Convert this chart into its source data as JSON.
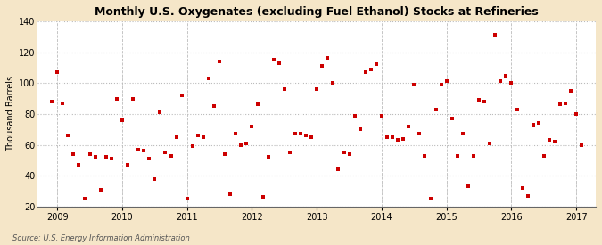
{
  "title": "Monthly U.S. Oxygenates (excluding Fuel Ethanol) Stocks at Refineries",
  "ylabel": "Thousand Barrels",
  "source": "Source: U.S. Energy Information Administration",
  "outer_bg": "#f5e6c8",
  "plot_bg": "#ffffff",
  "marker_color": "#cc0000",
  "grid_color": "#bbbbbb",
  "ylim": [
    20,
    140
  ],
  "yticks": [
    20,
    40,
    60,
    80,
    100,
    120,
    140
  ],
  "xlim": [
    2008.7,
    2017.3
  ],
  "xticks": [
    2009,
    2010,
    2011,
    2012,
    2013,
    2014,
    2015,
    2016,
    2017
  ],
  "data": [
    {
      "date": 2008.917,
      "value": 88
    },
    {
      "date": 2009.0,
      "value": 107
    },
    {
      "date": 2009.083,
      "value": 87
    },
    {
      "date": 2009.167,
      "value": 66
    },
    {
      "date": 2009.25,
      "value": 54
    },
    {
      "date": 2009.333,
      "value": 47
    },
    {
      "date": 2009.417,
      "value": 25
    },
    {
      "date": 2009.5,
      "value": 54
    },
    {
      "date": 2009.583,
      "value": 52
    },
    {
      "date": 2009.667,
      "value": 31
    },
    {
      "date": 2009.75,
      "value": 52
    },
    {
      "date": 2009.833,
      "value": 51
    },
    {
      "date": 2009.917,
      "value": 90
    },
    {
      "date": 2010.0,
      "value": 76
    },
    {
      "date": 2010.083,
      "value": 47
    },
    {
      "date": 2010.167,
      "value": 90
    },
    {
      "date": 2010.25,
      "value": 57
    },
    {
      "date": 2010.333,
      "value": 56
    },
    {
      "date": 2010.417,
      "value": 51
    },
    {
      "date": 2010.5,
      "value": 38
    },
    {
      "date": 2010.583,
      "value": 81
    },
    {
      "date": 2010.667,
      "value": 55
    },
    {
      "date": 2010.75,
      "value": 53
    },
    {
      "date": 2010.833,
      "value": 65
    },
    {
      "date": 2010.917,
      "value": 92
    },
    {
      "date": 2011.0,
      "value": 25
    },
    {
      "date": 2011.083,
      "value": 59
    },
    {
      "date": 2011.167,
      "value": 66
    },
    {
      "date": 2011.25,
      "value": 65
    },
    {
      "date": 2011.333,
      "value": 103
    },
    {
      "date": 2011.417,
      "value": 85
    },
    {
      "date": 2011.5,
      "value": 114
    },
    {
      "date": 2011.583,
      "value": 54
    },
    {
      "date": 2011.667,
      "value": 28
    },
    {
      "date": 2011.75,
      "value": 67
    },
    {
      "date": 2011.833,
      "value": 60
    },
    {
      "date": 2011.917,
      "value": 61
    },
    {
      "date": 2012.0,
      "value": 72
    },
    {
      "date": 2012.083,
      "value": 86
    },
    {
      "date": 2012.167,
      "value": 26
    },
    {
      "date": 2012.25,
      "value": 52
    },
    {
      "date": 2012.333,
      "value": 115
    },
    {
      "date": 2012.417,
      "value": 113
    },
    {
      "date": 2012.5,
      "value": 96
    },
    {
      "date": 2012.583,
      "value": 55
    },
    {
      "date": 2012.667,
      "value": 67
    },
    {
      "date": 2012.75,
      "value": 67
    },
    {
      "date": 2012.833,
      "value": 66
    },
    {
      "date": 2012.917,
      "value": 65
    },
    {
      "date": 2013.0,
      "value": 96
    },
    {
      "date": 2013.083,
      "value": 111
    },
    {
      "date": 2013.167,
      "value": 116
    },
    {
      "date": 2013.25,
      "value": 100
    },
    {
      "date": 2013.333,
      "value": 44
    },
    {
      "date": 2013.417,
      "value": 55
    },
    {
      "date": 2013.5,
      "value": 54
    },
    {
      "date": 2013.583,
      "value": 79
    },
    {
      "date": 2013.667,
      "value": 70
    },
    {
      "date": 2013.75,
      "value": 107
    },
    {
      "date": 2013.833,
      "value": 109
    },
    {
      "date": 2013.917,
      "value": 112
    },
    {
      "date": 2014.0,
      "value": 79
    },
    {
      "date": 2014.083,
      "value": 65
    },
    {
      "date": 2014.167,
      "value": 65
    },
    {
      "date": 2014.25,
      "value": 63
    },
    {
      "date": 2014.333,
      "value": 64
    },
    {
      "date": 2014.417,
      "value": 72
    },
    {
      "date": 2014.5,
      "value": 99
    },
    {
      "date": 2014.583,
      "value": 67
    },
    {
      "date": 2014.667,
      "value": 53
    },
    {
      "date": 2014.75,
      "value": 25
    },
    {
      "date": 2014.833,
      "value": 83
    },
    {
      "date": 2014.917,
      "value": 99
    },
    {
      "date": 2015.0,
      "value": 101
    },
    {
      "date": 2015.083,
      "value": 77
    },
    {
      "date": 2015.167,
      "value": 53
    },
    {
      "date": 2015.25,
      "value": 67
    },
    {
      "date": 2015.333,
      "value": 33
    },
    {
      "date": 2015.417,
      "value": 53
    },
    {
      "date": 2015.5,
      "value": 89
    },
    {
      "date": 2015.583,
      "value": 88
    },
    {
      "date": 2015.667,
      "value": 61
    },
    {
      "date": 2015.75,
      "value": 131
    },
    {
      "date": 2015.833,
      "value": 101
    },
    {
      "date": 2015.917,
      "value": 105
    },
    {
      "date": 2016.0,
      "value": 100
    },
    {
      "date": 2016.083,
      "value": 83
    },
    {
      "date": 2016.167,
      "value": 32
    },
    {
      "date": 2016.25,
      "value": 27
    },
    {
      "date": 2016.333,
      "value": 73
    },
    {
      "date": 2016.417,
      "value": 74
    },
    {
      "date": 2016.5,
      "value": 53
    },
    {
      "date": 2016.583,
      "value": 63
    },
    {
      "date": 2016.667,
      "value": 62
    },
    {
      "date": 2016.75,
      "value": 86
    },
    {
      "date": 2016.833,
      "value": 87
    },
    {
      "date": 2016.917,
      "value": 95
    },
    {
      "date": 2017.0,
      "value": 80
    },
    {
      "date": 2017.083,
      "value": 60
    }
  ]
}
